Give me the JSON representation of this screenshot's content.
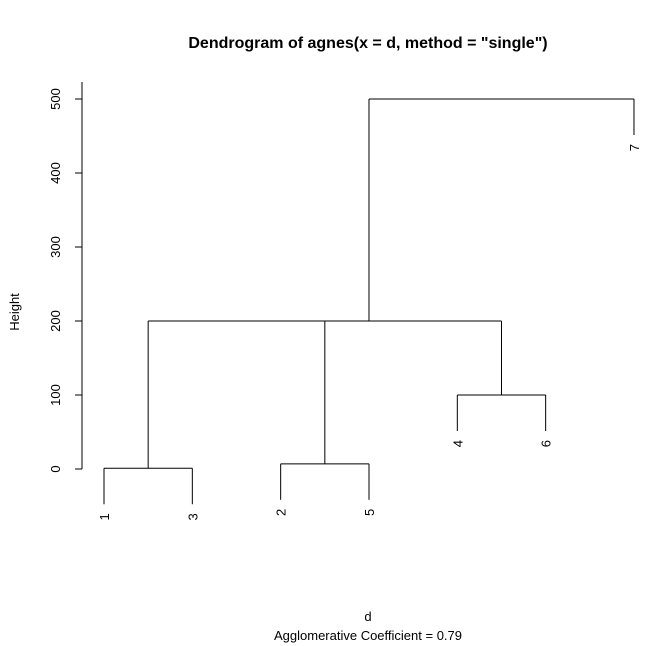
{
  "chart_data": {
    "type": "dendrogram",
    "title": "Dendrogram of  agnes(x = d, method = \"single\")",
    "xlabel": "d",
    "subtitle": "Agglomerative Coefficient =   0.79",
    "ylabel": "Height",
    "ylim": [
      0,
      500
    ],
    "yticks": [
      "0",
      "100",
      "200",
      "300",
      "400",
      "500"
    ],
    "leaves": [
      "1",
      "3",
      "2",
      "5",
      "4",
      "6",
      "7"
    ],
    "merges": [
      {
        "left": "1",
        "right": "3",
        "height": 1
      },
      {
        "left": "2",
        "right": "5",
        "height": 7
      },
      {
        "left": "4",
        "right": "6",
        "height": 100
      },
      {
        "left": "1-3",
        "right": "2-5",
        "height": 200
      },
      {
        "left": "1-3-2-5",
        "right": "4-6",
        "height": 200
      },
      {
        "left": "1-3-2-5-4-6",
        "right": "7",
        "height": 500
      }
    ]
  }
}
